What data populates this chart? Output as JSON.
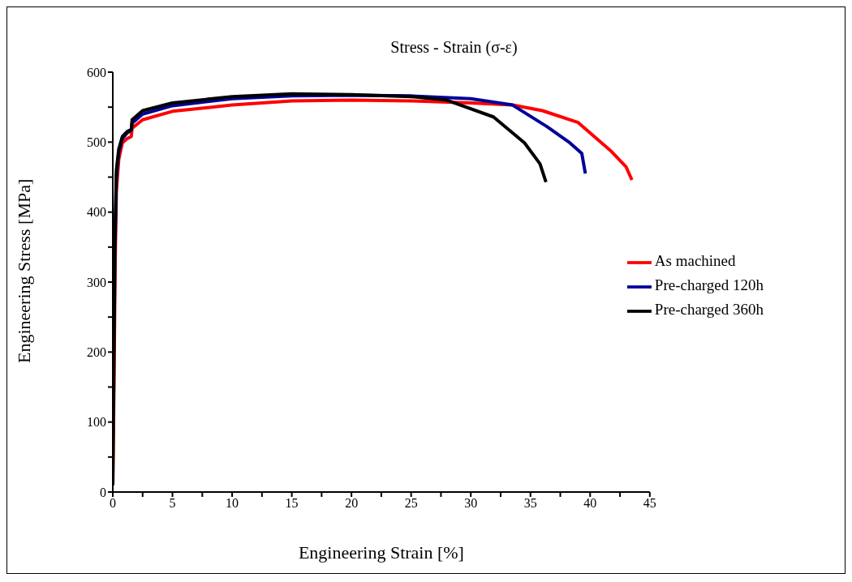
{
  "chart_data": {
    "type": "line",
    "title": "Stress - Strain (σ-ε)",
    "xlabel": "Engineering Strain [%]",
    "ylabel": "Engineering Stress [MPa]",
    "xlim": [
      0,
      45
    ],
    "xticks": [
      0,
      {
        "value": 2.5,
        "label": null
      },
      5,
      {
        "value": 7.5,
        "label": null
      },
      10,
      {
        "value": 12.5,
        "label": null
      },
      15,
      {
        "value": 17.5,
        "label": null
      },
      20,
      {
        "value": 22.5,
        "label": null
      },
      25,
      {
        "value": 27.5,
        "label": null
      },
      30,
      {
        "value": 32.5,
        "label": null
      },
      35,
      {
        "value": 37.5,
        "label": null
      },
      40,
      {
        "value": 42.5,
        "label": null
      },
      45
    ],
    "ylim": [
      0,
      600
    ],
    "yticks": [
      0,
      {
        "value": 50,
        "label": null
      },
      100,
      {
        "value": 150,
        "label": null
      },
      200,
      {
        "value": 250,
        "label": null
      },
      300,
      {
        "value": 350,
        "label": null
      },
      400,
      {
        "value": 450,
        "label": null
      },
      500,
      {
        "value": 550,
        "label": null
      },
      600
    ],
    "grid": false,
    "legend": "right",
    "marker": "none",
    "line_style": "solid",
    "series": [
      {
        "name": "As machined",
        "color": "#ff0000",
        "x": [
          0,
          0.1,
          0.2,
          0.3,
          0.5,
          0.8,
          1.2,
          1.55,
          1.62,
          2.5,
          5,
          10,
          15,
          20,
          25,
          30,
          33.5,
          36,
          39,
          41.7,
          43,
          43.5
        ],
        "values": [
          10,
          150,
          330,
          430,
          475,
          499,
          505,
          508,
          520,
          532,
          544,
          553,
          559,
          560,
          559,
          556,
          553,
          545,
          528,
          488,
          465,
          446
        ]
      },
      {
        "name": "Pre-charged 120h",
        "color": "#000099",
        "x": [
          0.2,
          0.3,
          0.5,
          0.8,
          1.2,
          1.55,
          1.62,
          2.5,
          5,
          10,
          15,
          20,
          25,
          30,
          33.5,
          36.4,
          38.3,
          39.3,
          39.6
        ],
        "values": [
          360,
          450,
          485,
          505,
          513,
          517,
          527,
          540,
          552,
          562,
          566,
          567,
          566,
          562,
          553,
          522,
          499,
          484,
          455
        ]
      },
      {
        "name": "Pre-charged 360h",
        "color": "#000000",
        "x": [
          0,
          0.1,
          0.2,
          0.3,
          0.5,
          0.8,
          1.2,
          1.55,
          1.62,
          2.5,
          5,
          10,
          15,
          20,
          25,
          28,
          31.9,
          34.5,
          35.8,
          36.3
        ],
        "values": [
          10,
          200,
          380,
          460,
          490,
          508,
          515,
          518,
          532,
          545,
          556,
          565,
          569,
          568,
          565,
          560,
          536,
          499,
          469,
          443
        ]
      }
    ]
  }
}
